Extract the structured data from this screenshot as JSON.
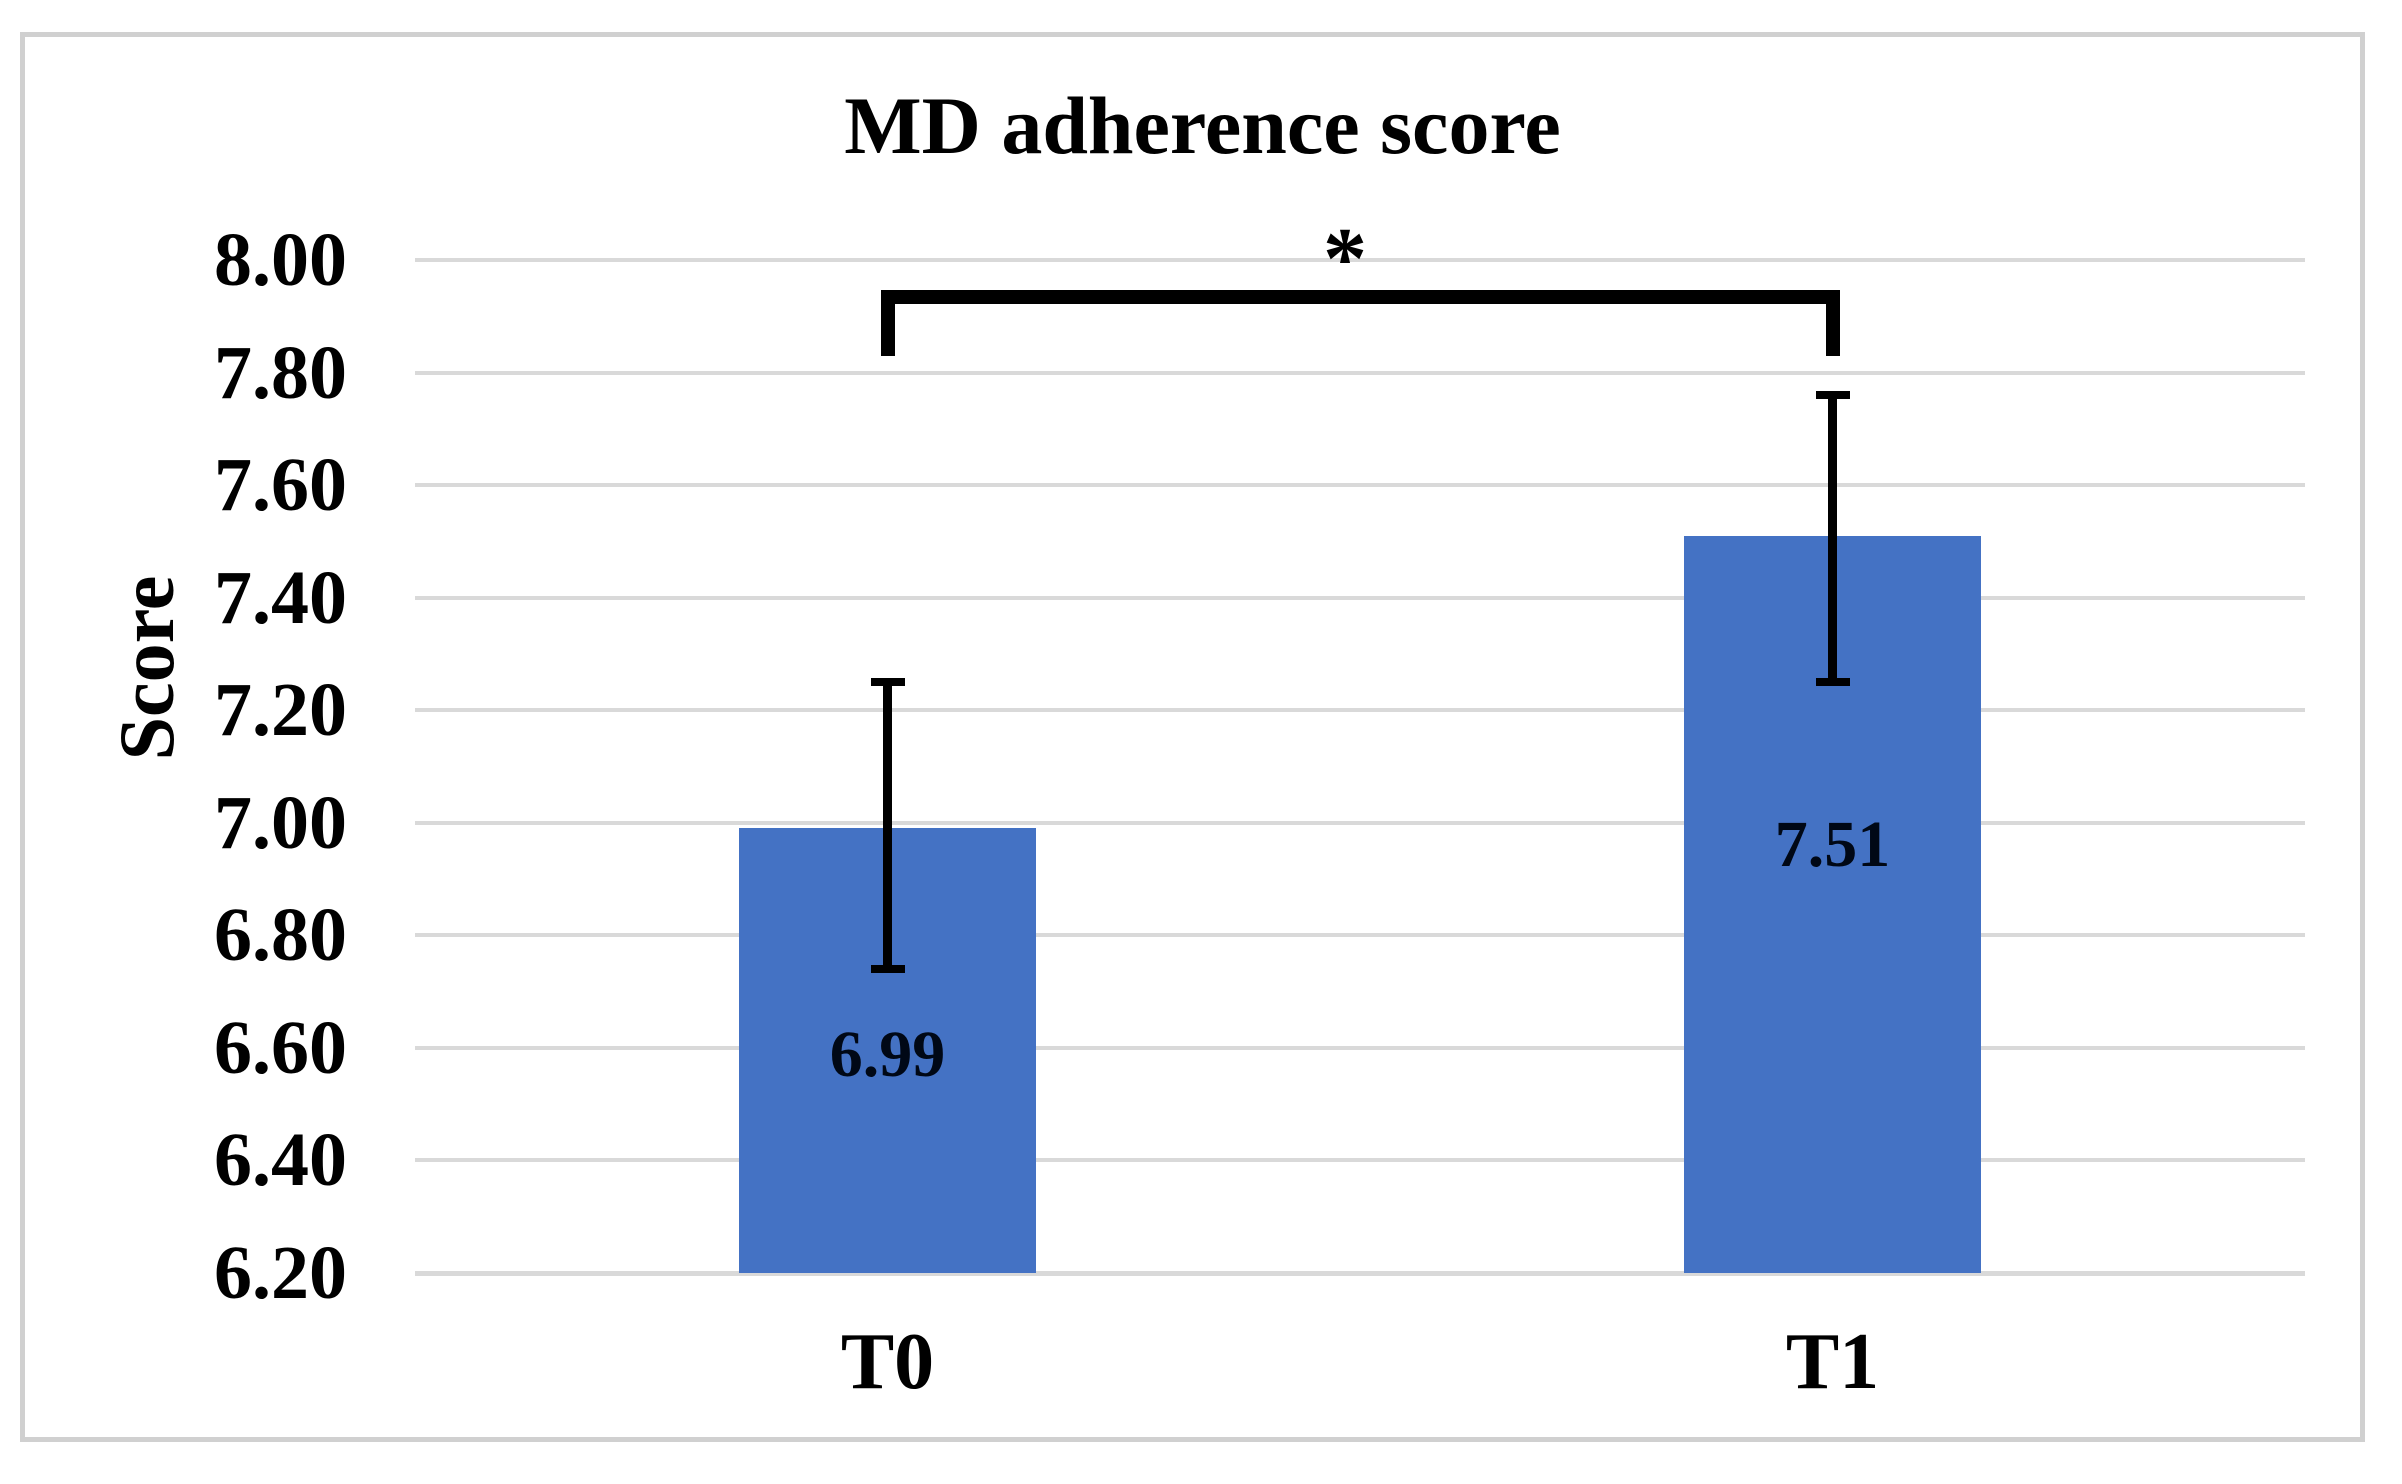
{
  "chart_data": {
    "type": "bar",
    "title": "MD adherence score",
    "ylabel": "Score",
    "xlabel": "",
    "categories": [
      "T0",
      "T1"
    ],
    "values": [
      6.99,
      7.51
    ],
    "value_labels": [
      "6.99",
      "7.51"
    ],
    "errors_low": [
      6.74,
      7.25
    ],
    "errors_high": [
      7.25,
      7.76
    ],
    "ylim": [
      6.2,
      8.0
    ],
    "ytick_labels": [
      "8.00",
      "7.80",
      "7.60",
      "7.40",
      "7.20",
      "7.00",
      "6.80",
      "6.60",
      "6.40",
      "6.20"
    ],
    "ytick_values": [
      8.0,
      7.8,
      7.6,
      7.4,
      7.2,
      7.0,
      6.8,
      6.6,
      6.4,
      6.2
    ],
    "grid": "horizontal",
    "legend": "none",
    "bar_color": "#4472C4",
    "gridline_color": "#D9D9D9",
    "frame_color": "#D0D0D0",
    "text_color": "#000000",
    "significance": {
      "label": "*",
      "between": [
        "T0",
        "T1"
      ],
      "bracket_y_value": 7.935,
      "leg_bottom_value": 7.83
    },
    "value_label_frac_from_top": [
      0.51,
      0.42
    ]
  }
}
